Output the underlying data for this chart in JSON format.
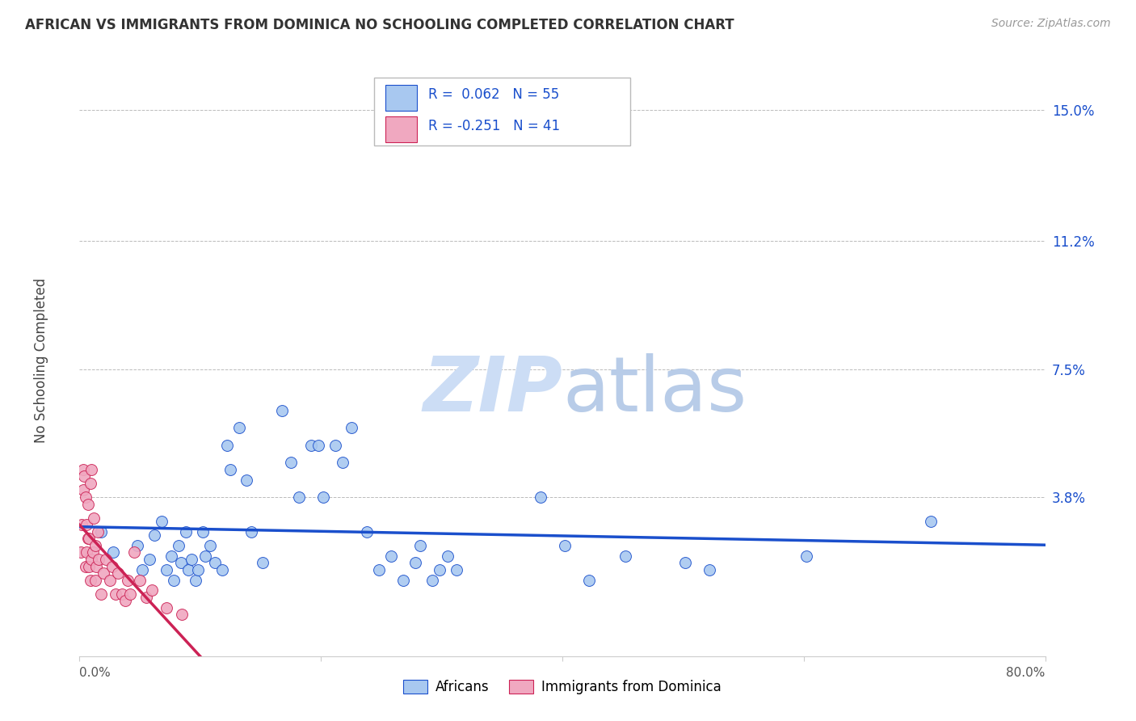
{
  "title": "AFRICAN VS IMMIGRANTS FROM DOMINICA NO SCHOOLING COMPLETED CORRELATION CHART",
  "source": "Source: ZipAtlas.com",
  "ylabel": "No Schooling Completed",
  "ytick_labels": [
    "3.8%",
    "7.5%",
    "11.2%",
    "15.0%"
  ],
  "ytick_values": [
    0.038,
    0.075,
    0.112,
    0.15
  ],
  "xlim": [
    0.0,
    0.8
  ],
  "ylim": [
    -0.008,
    0.163
  ],
  "R_african": 0.062,
  "N_african": 55,
  "R_dominica": -0.251,
  "N_dominica": 41,
  "color_african": "#a8c8f0",
  "color_dominica": "#f0a8c0",
  "line_color_african": "#1a4fcc",
  "line_color_dominica": "#cc2255",
  "title_color": "#333333",
  "source_color": "#999999",
  "watermark_color": "#ccddf5",
  "african_x": [
    0.018,
    0.028,
    0.048,
    0.052,
    0.058,
    0.062,
    0.068,
    0.072,
    0.076,
    0.078,
    0.082,
    0.084,
    0.088,
    0.09,
    0.093,
    0.096,
    0.098,
    0.102,
    0.104,
    0.108,
    0.112,
    0.118,
    0.122,
    0.125,
    0.132,
    0.138,
    0.142,
    0.152,
    0.168,
    0.175,
    0.182,
    0.192,
    0.198,
    0.202,
    0.212,
    0.218,
    0.225,
    0.238,
    0.248,
    0.258,
    0.268,
    0.278,
    0.282,
    0.292,
    0.298,
    0.305,
    0.312,
    0.382,
    0.402,
    0.422,
    0.452,
    0.502,
    0.522,
    0.602,
    0.705
  ],
  "african_y": [
    0.028,
    0.022,
    0.024,
    0.017,
    0.02,
    0.027,
    0.031,
    0.017,
    0.021,
    0.014,
    0.024,
    0.019,
    0.028,
    0.017,
    0.02,
    0.014,
    0.017,
    0.028,
    0.021,
    0.024,
    0.019,
    0.017,
    0.053,
    0.046,
    0.058,
    0.043,
    0.028,
    0.019,
    0.063,
    0.048,
    0.038,
    0.053,
    0.053,
    0.038,
    0.053,
    0.048,
    0.058,
    0.028,
    0.017,
    0.021,
    0.014,
    0.019,
    0.024,
    0.014,
    0.017,
    0.021,
    0.017,
    0.038,
    0.024,
    0.014,
    0.021,
    0.019,
    0.017,
    0.021,
    0.031
  ],
  "dominica_x": [
    0.001,
    0.002,
    0.003,
    0.003,
    0.004,
    0.005,
    0.005,
    0.006,
    0.006,
    0.007,
    0.007,
    0.008,
    0.008,
    0.009,
    0.009,
    0.01,
    0.01,
    0.011,
    0.012,
    0.013,
    0.013,
    0.014,
    0.015,
    0.016,
    0.018,
    0.02,
    0.022,
    0.025,
    0.027,
    0.03,
    0.032,
    0.035,
    0.038,
    0.04,
    0.042,
    0.045,
    0.05,
    0.055,
    0.06,
    0.072,
    0.085
  ],
  "dominica_y": [
    0.022,
    0.03,
    0.04,
    0.046,
    0.044,
    0.018,
    0.038,
    0.022,
    0.03,
    0.026,
    0.036,
    0.018,
    0.026,
    0.014,
    0.042,
    0.02,
    0.046,
    0.022,
    0.032,
    0.014,
    0.024,
    0.018,
    0.028,
    0.02,
    0.01,
    0.016,
    0.02,
    0.014,
    0.018,
    0.01,
    0.016,
    0.01,
    0.008,
    0.014,
    0.01,
    0.022,
    0.014,
    0.009,
    0.011,
    0.006,
    0.004
  ]
}
